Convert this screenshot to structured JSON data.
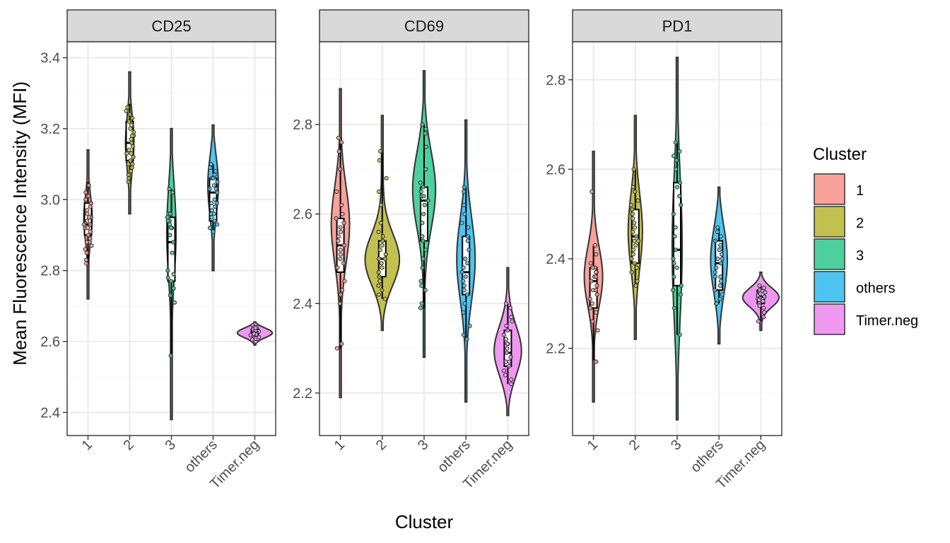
{
  "figure": {
    "ylabel": "Mean Fluorescence Intensity (MFI)",
    "xlabel": "Cluster"
  },
  "legend": {
    "title": "Cluster",
    "entries": [
      "1",
      "2",
      "3",
      "others",
      "Timer.neg"
    ]
  },
  "colors": {
    "1": "#F8A29B",
    "2": "#C2C14F",
    "3": "#4ED09E",
    "others": "#4DC5F0",
    "Timer.neg": "#EE98F2",
    "strip": "#D9D9D9",
    "grid_major": "#EBEBEB",
    "grid_minor": "#F4F4F4"
  },
  "chart_data": [
    {
      "type": "violin",
      "title": "CD25",
      "categories": [
        "1",
        "2",
        "3",
        "others",
        "Timer.neg"
      ],
      "ylim": [
        2.335,
        3.445
      ],
      "yticks": [
        2.4,
        2.6,
        2.8,
        3.0,
        3.2,
        3.4
      ],
      "yticklabels": [
        "2.4",
        "2.6",
        "2.8",
        "3.0",
        "3.2",
        "3.4"
      ],
      "groups": [
        {
          "category": "1",
          "min": 2.72,
          "max": 3.14,
          "box": [
            2.9,
            2.93,
            2.99
          ],
          "whisker": [
            2.82,
            3.05
          ],
          "peak": 2.95,
          "width": 0.1,
          "points": [
            3.02,
            3.01,
            2.99,
            2.98,
            2.97,
            2.95,
            2.95,
            2.94,
            2.93,
            2.93,
            2.92,
            2.91,
            2.9,
            2.89,
            2.88,
            2.87,
            2.86,
            2.85,
            2.83,
            2.82,
            3.04,
            3.0,
            2.96,
            2.92,
            2.88
          ]
        },
        {
          "category": "2",
          "min": 2.96,
          "max": 3.36,
          "box": [
            3.11,
            3.16,
            3.22
          ],
          "whisker": [
            3.05,
            3.27
          ],
          "peak": 3.16,
          "width": 0.1,
          "points": [
            3.26,
            3.25,
            3.24,
            3.22,
            3.21,
            3.2,
            3.19,
            3.18,
            3.17,
            3.16,
            3.15,
            3.14,
            3.13,
            3.12,
            3.11,
            3.1,
            3.09,
            3.08,
            3.07,
            3.06,
            3.05,
            3.23,
            3.18,
            3.13,
            3.1
          ]
        },
        {
          "category": "3",
          "min": 2.38,
          "max": 3.2,
          "box": [
            2.77,
            2.88,
            2.95
          ],
          "whisker": [
            2.56,
            3.03
          ],
          "peak": 2.93,
          "width": 0.12,
          "points": [
            3.03,
            3.02,
            2.96,
            2.95,
            2.95,
            2.94,
            2.93,
            2.92,
            2.9,
            2.88,
            2.85,
            2.8,
            2.79,
            2.78,
            2.77,
            2.75,
            2.73,
            2.71,
            2.56,
            2.92,
            2.94,
            2.96
          ]
        },
        {
          "category": "others",
          "min": 2.8,
          "max": 3.21,
          "box": [
            2.94,
            3.02,
            3.06
          ],
          "whisker": [
            2.91,
            3.1
          ],
          "peak": 3.05,
          "width": 0.13,
          "points": [
            3.1,
            3.09,
            3.08,
            3.07,
            3.06,
            3.05,
            3.04,
            3.03,
            3.02,
            3.0,
            2.99,
            2.98,
            2.97,
            2.96,
            2.95,
            2.94,
            2.93,
            2.92,
            2.91,
            3.06,
            3.03,
            2.99,
            2.96
          ]
        },
        {
          "category": "Timer.neg",
          "min": 2.59,
          "max": 2.655,
          "box": [
            2.615,
            2.625,
            2.635
          ],
          "whisker": [
            2.6,
            2.645
          ],
          "peak": 2.625,
          "width": 0.42,
          "points": [
            2.645,
            2.64,
            2.64,
            2.635,
            2.63,
            2.63,
            2.628,
            2.625,
            2.625,
            2.62,
            2.618,
            2.615,
            2.612,
            2.61,
            2.605,
            2.6,
            2.632,
            2.622,
            2.638,
            2.608
          ]
        }
      ]
    },
    {
      "type": "violin",
      "title": "CD69",
      "categories": [
        "1",
        "2",
        "3",
        "others",
        "Timer.neg"
      ],
      "ylim": [
        2.105,
        2.985
      ],
      "yticks": [
        2.2,
        2.4,
        2.6,
        2.8
      ],
      "yticklabels": [
        "2.2",
        "2.4",
        "2.6",
        "2.8"
      ],
      "groups": [
        {
          "category": "1",
          "min": 2.19,
          "max": 2.88,
          "box": [
            2.47,
            2.53,
            2.59
          ],
          "whisker": [
            2.3,
            2.76
          ],
          "peak": 2.58,
          "width": 0.22,
          "points": [
            2.77,
            2.76,
            2.74,
            2.7,
            2.65,
            2.62,
            2.6,
            2.59,
            2.58,
            2.57,
            2.56,
            2.55,
            2.54,
            2.53,
            2.52,
            2.51,
            2.5,
            2.49,
            2.48,
            2.45,
            2.43,
            2.42,
            2.4,
            2.31,
            2.3
          ]
        },
        {
          "category": "2",
          "min": 2.34,
          "max": 2.82,
          "box": [
            2.46,
            2.5,
            2.54
          ],
          "whisker": [
            2.41,
            2.74
          ],
          "peak": 2.49,
          "width": 0.45,
          "points": [
            2.74,
            2.72,
            2.68,
            2.65,
            2.62,
            2.58,
            2.56,
            2.55,
            2.54,
            2.53,
            2.52,
            2.51,
            2.5,
            2.5,
            2.49,
            2.48,
            2.47,
            2.46,
            2.45,
            2.44,
            2.43,
            2.42,
            2.41
          ]
        },
        {
          "category": "3",
          "min": 2.28,
          "max": 2.92,
          "box": [
            2.54,
            2.63,
            2.66
          ],
          "whisker": [
            2.39,
            2.8
          ],
          "peak": 2.66,
          "width": 0.28,
          "points": [
            2.8,
            2.79,
            2.78,
            2.75,
            2.7,
            2.67,
            2.66,
            2.65,
            2.64,
            2.64,
            2.63,
            2.62,
            2.6,
            2.58,
            2.55,
            2.54,
            2.52,
            2.5,
            2.48,
            2.45,
            2.44,
            2.43,
            2.4,
            2.39
          ]
        },
        {
          "category": "others",
          "min": 2.18,
          "max": 2.81,
          "box": [
            2.42,
            2.47,
            2.55
          ],
          "whisker": [
            2.32,
            2.66
          ],
          "peak": 2.5,
          "width": 0.22,
          "points": [
            2.66,
            2.65,
            2.62,
            2.6,
            2.58,
            2.57,
            2.55,
            2.54,
            2.52,
            2.5,
            2.49,
            2.48,
            2.47,
            2.46,
            2.45,
            2.44,
            2.43,
            2.42,
            2.4,
            2.38,
            2.35,
            2.33,
            2.32
          ]
        },
        {
          "category": "Timer.neg",
          "min": 2.15,
          "max": 2.48,
          "box": [
            2.26,
            2.29,
            2.34
          ],
          "whisker": [
            2.22,
            2.4
          ],
          "peak": 2.29,
          "width": 0.33,
          "points": [
            2.4,
            2.39,
            2.37,
            2.36,
            2.35,
            2.34,
            2.33,
            2.32,
            2.31,
            2.3,
            2.29,
            2.28,
            2.27,
            2.26,
            2.25,
            2.24,
            2.23,
            2.22,
            2.31,
            2.27
          ]
        }
      ]
    },
    {
      "type": "violin",
      "title": "PD1",
      "categories": [
        "1",
        "2",
        "3",
        "others",
        "Timer.neg"
      ],
      "ylim": [
        2.005,
        2.885
      ],
      "yticks": [
        2.2,
        2.4,
        2.6,
        2.8
      ],
      "yticklabels": [
        "2.2",
        "2.4",
        "2.6",
        "2.8"
      ],
      "groups": [
        {
          "category": "1",
          "min": 2.08,
          "max": 2.64,
          "box": [
            2.29,
            2.35,
            2.38
          ],
          "whisker": [
            2.17,
            2.43
          ],
          "peak": 2.36,
          "width": 0.22,
          "points": [
            2.55,
            2.43,
            2.41,
            2.39,
            2.38,
            2.38,
            2.37,
            2.36,
            2.36,
            2.35,
            2.34,
            2.33,
            2.32,
            2.31,
            2.3,
            2.29,
            2.28,
            2.26,
            2.24,
            2.17,
            2.17,
            2.37,
            2.33
          ]
        },
        {
          "category": "2",
          "min": 2.22,
          "max": 2.72,
          "box": [
            2.39,
            2.45,
            2.51
          ],
          "whisker": [
            2.34,
            2.6
          ],
          "peak": 2.46,
          "width": 0.17,
          "points": [
            2.6,
            2.56,
            2.55,
            2.53,
            2.52,
            2.51,
            2.5,
            2.49,
            2.47,
            2.46,
            2.45,
            2.44,
            2.43,
            2.42,
            2.41,
            2.4,
            2.39,
            2.38,
            2.37,
            2.35,
            2.34,
            2.48,
            2.44
          ]
        },
        {
          "category": "3",
          "min": 2.04,
          "max": 2.85,
          "box": [
            2.34,
            2.42,
            2.57
          ],
          "whisker": [
            2.23,
            2.66
          ],
          "peak": 2.42,
          "width": 0.12,
          "points": [
            2.66,
            2.64,
            2.63,
            2.62,
            2.6,
            2.57,
            2.56,
            2.54,
            2.5,
            2.45,
            2.42,
            2.4,
            2.39,
            2.38,
            2.36,
            2.34,
            2.33,
            2.32,
            2.29,
            2.23,
            2.47,
            2.52
          ]
        },
        {
          "category": "others",
          "min": 2.21,
          "max": 2.56,
          "box": [
            2.33,
            2.39,
            2.44
          ],
          "whisker": [
            2.3,
            2.47
          ],
          "peak": 2.4,
          "width": 0.2,
          "points": [
            2.47,
            2.46,
            2.45,
            2.44,
            2.43,
            2.42,
            2.41,
            2.4,
            2.39,
            2.38,
            2.37,
            2.36,
            2.35,
            2.34,
            2.33,
            2.32,
            2.31,
            2.3,
            2.3,
            2.4,
            2.36
          ]
        },
        {
          "category": "Timer.neg",
          "min": 2.24,
          "max": 2.37,
          "box": [
            2.3,
            2.315,
            2.33
          ],
          "whisker": [
            2.26,
            2.34
          ],
          "peak": 2.315,
          "width": 0.44,
          "points": [
            2.34,
            2.335,
            2.33,
            2.328,
            2.325,
            2.32,
            2.318,
            2.315,
            2.312,
            2.31,
            2.305,
            2.3,
            2.295,
            2.29,
            2.28,
            2.27,
            2.26,
            2.322,
            2.308
          ]
        }
      ]
    }
  ]
}
